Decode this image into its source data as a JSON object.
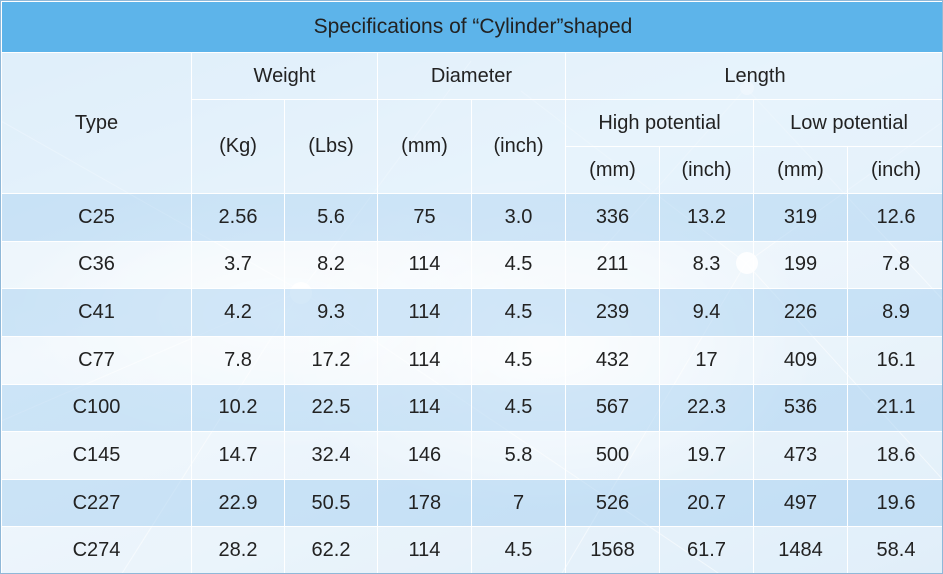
{
  "title": "Specifications of “Cylinder”shaped",
  "headers": {
    "type": "Type",
    "weight": "Weight",
    "diameter": "Diameter",
    "length": "Length",
    "high_potential": "High potential",
    "low_potential": "Low potential",
    "kg": "(Kg)",
    "lbs": "(Lbs)",
    "mm": "(mm)",
    "inch": "(inch)"
  },
  "colors": {
    "title_bar": "#5db4ea",
    "shaded_row": "#b0d6f2",
    "background": "#e3f0fa"
  },
  "rows": [
    [
      "C25",
      "2.56",
      "5.6",
      "75",
      "3.0",
      "336",
      "13.2",
      "319",
      "12.6"
    ],
    [
      "C36",
      "3.7",
      "8.2",
      "114",
      "4.5",
      "211",
      "8.3",
      "199",
      "7.8"
    ],
    [
      "C41",
      "4.2",
      "9.3",
      "114",
      "4.5",
      "239",
      "9.4",
      "226",
      "8.9"
    ],
    [
      "C77",
      "7.8",
      "17.2",
      "114",
      "4.5",
      "432",
      "17",
      "409",
      "16.1"
    ],
    [
      "C100",
      "10.2",
      "22.5",
      "114",
      "4.5",
      "567",
      "22.3",
      "536",
      "21.1"
    ],
    [
      "C145",
      "14.7",
      "32.4",
      "146",
      "5.8",
      "500",
      "19.7",
      "473",
      "18.6"
    ],
    [
      "C227",
      "22.9",
      "50.5",
      "178",
      "7",
      "526",
      "20.7",
      "497",
      "19.6"
    ],
    [
      "C274",
      "28.2",
      "62.2",
      "114",
      "4.5",
      "1568",
      "61.7",
      "1484",
      "58.4"
    ]
  ]
}
